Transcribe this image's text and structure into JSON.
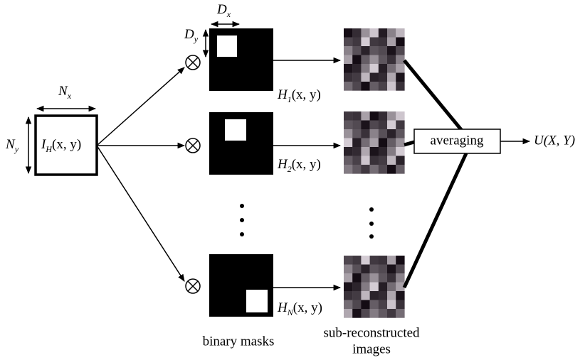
{
  "labels": {
    "dx": {
      "main": "D",
      "sub": "x"
    },
    "dy": {
      "main": "D",
      "sub": "y"
    },
    "nx": {
      "main": "N",
      "sub": "x"
    },
    "ny": {
      "main": "N",
      "sub": "y"
    },
    "input": {
      "main": "I",
      "sub": "H",
      "rest": "(x, y)"
    },
    "h1": {
      "main": "H",
      "sub": "1",
      "rest": "(x, y)"
    },
    "h2": {
      "main": "H",
      "sub": "2",
      "rest": "(x, y)"
    },
    "hn": {
      "main": "H",
      "sub": "N",
      "rest": "(x, y)"
    },
    "output": "U(X, Y)"
  },
  "averaging": "averaging",
  "captions": {
    "masks": "binary masks",
    "images": [
      "sub-reconstructed",
      "images"
    ]
  }
}
